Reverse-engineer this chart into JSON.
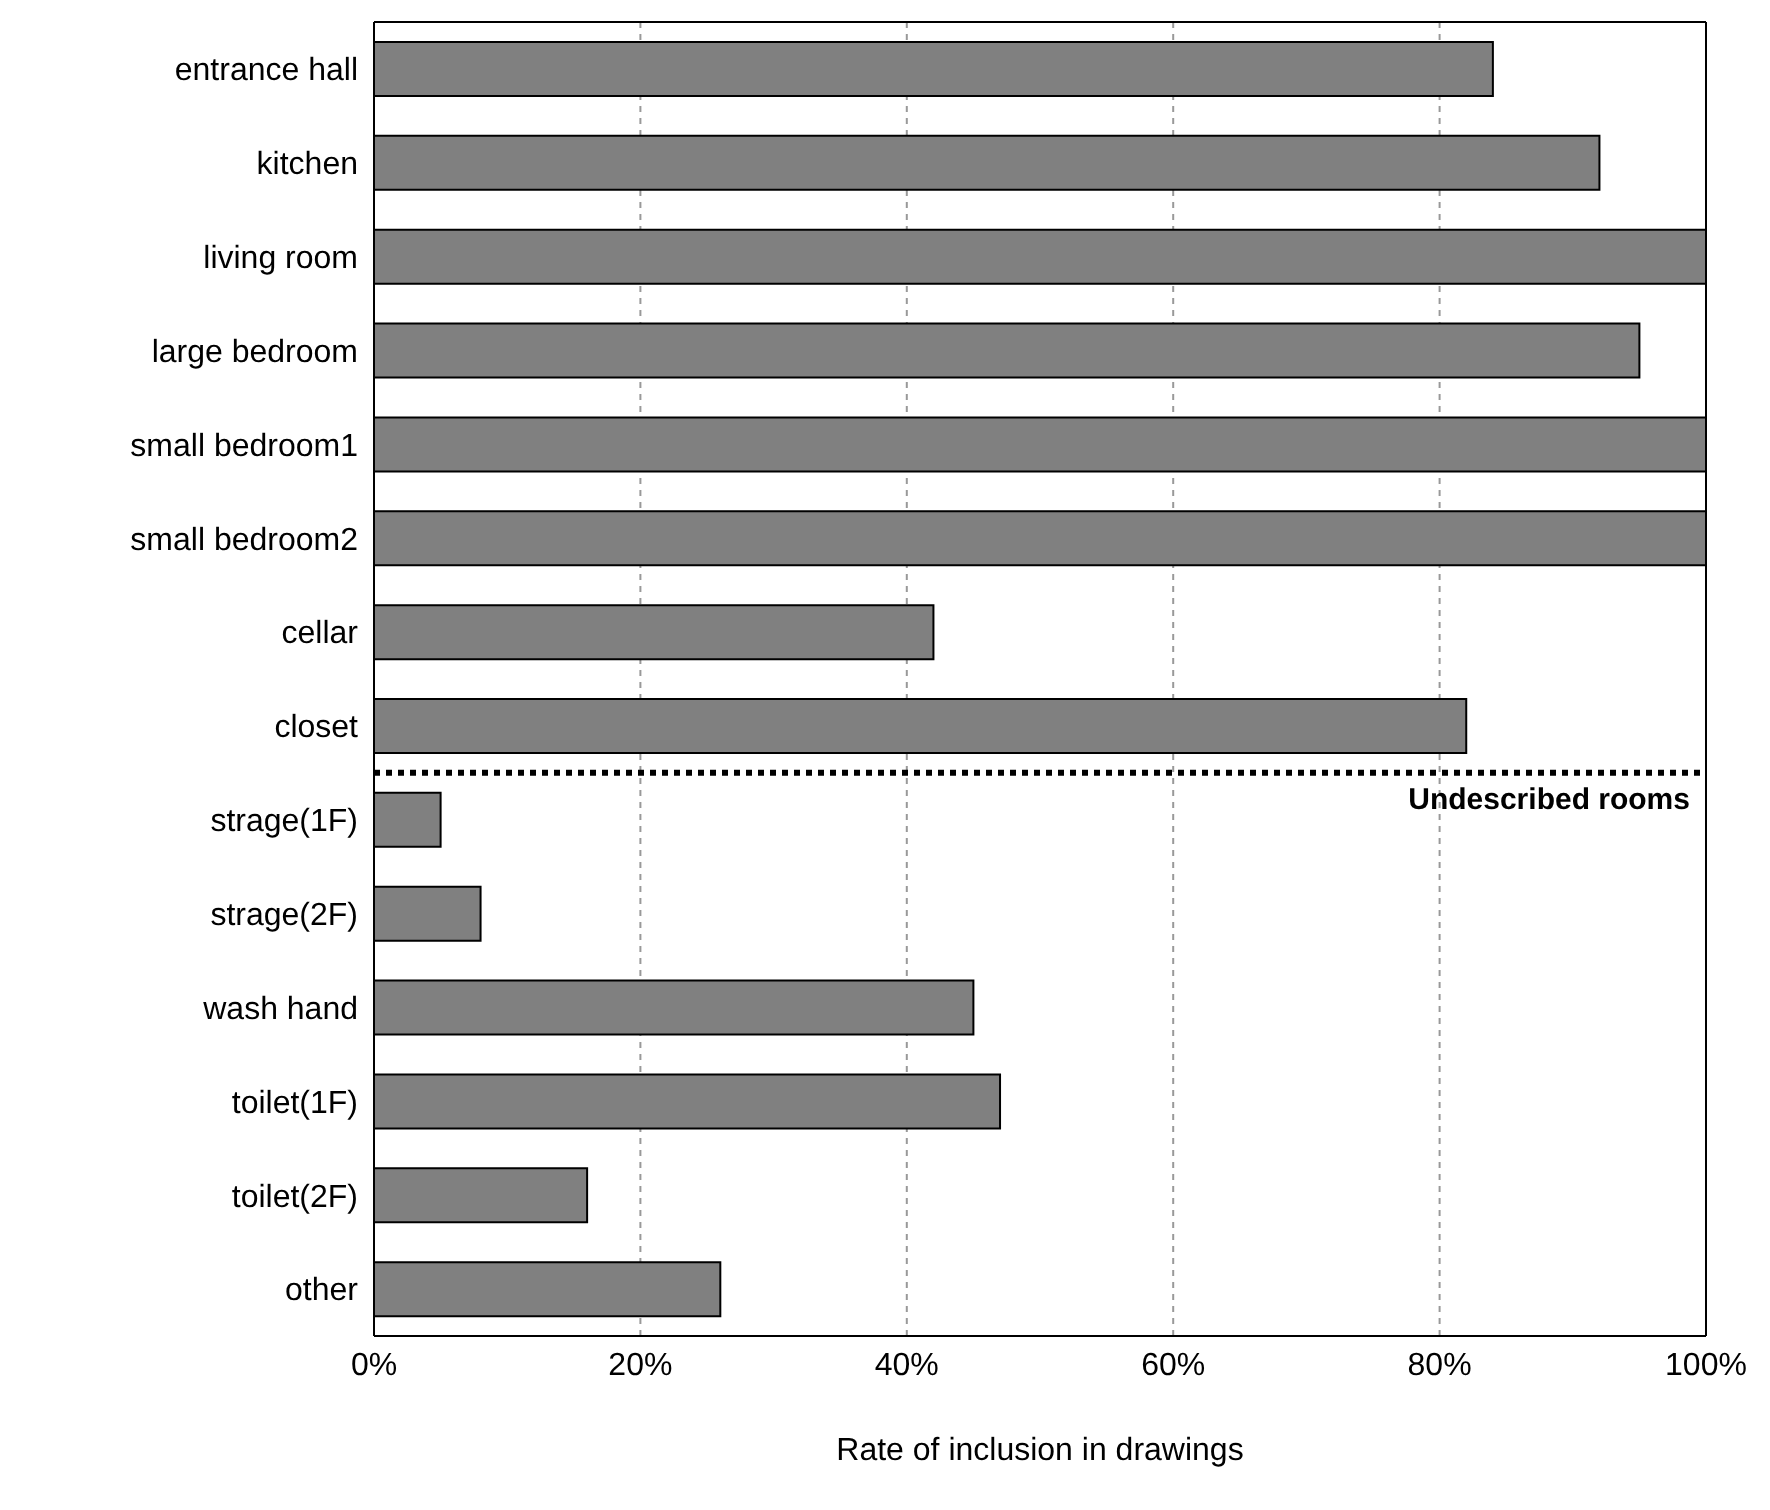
{
  "chart_data": {
    "type": "bar",
    "orientation": "horizontal",
    "xlabel": "Rate of inclusion in drawings",
    "categories": [
      "entrance hall",
      "kitchen",
      "living room",
      "large bedroom",
      "small bedroom1",
      "small bedroom2",
      "cellar",
      "closet",
      "strage(1F)",
      "strage(2F)",
      "wash hand",
      "toilet(1F)",
      "toilet(2F)",
      "other"
    ],
    "values": [
      84,
      92,
      100,
      95,
      100,
      100,
      42,
      82,
      5,
      8,
      45,
      47,
      16,
      26
    ],
    "color": "#808080",
    "xlim": [
      0,
      100
    ],
    "xticks": [
      {
        "value": 0,
        "label": "0%"
      },
      {
        "value": 20,
        "label": "20%"
      },
      {
        "value": 40,
        "label": "40%"
      },
      {
        "value": 60,
        "label": "60%"
      },
      {
        "value": 80,
        "label": "80%"
      },
      {
        "value": 100,
        "label": "100%"
      }
    ],
    "grid": "x",
    "ref_lines": [
      {
        "axis": "y",
        "value": "strage(1F)",
        "label": "Undescribed rooms",
        "line_style": "dotted",
        "color": "#000000"
      }
    ]
  }
}
